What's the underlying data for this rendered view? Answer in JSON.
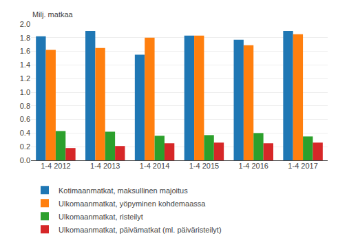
{
  "chart_data": {
    "type": "bar",
    "ylabel": "Milj. matkaa",
    "categories": [
      "1-4 2012",
      "1-4 2013",
      "1-4 2014",
      "1-4 2015",
      "1-4 2016",
      "1-4 2017"
    ],
    "series": [
      {
        "name": "Kotimaanmatkat, maksullinen majoitus",
        "values": [
          1.82,
          1.9,
          1.55,
          1.83,
          1.77,
          1.9
        ]
      },
      {
        "name": "Ulkomaanmatkat, yöpyminen kohdemaassa",
        "values": [
          1.62,
          1.65,
          1.8,
          1.83,
          1.69,
          1.85
        ]
      },
      {
        "name": "Ulkomaanmatkat, risteilyt",
        "values": [
          0.43,
          0.42,
          0.36,
          0.37,
          0.4,
          0.35
        ]
      },
      {
        "name": "Ulkomaanmatkat, päivämatkat (ml. päiväristeilyt)",
        "values": [
          0.18,
          0.21,
          0.25,
          0.26,
          0.25,
          0.26
        ]
      }
    ],
    "ylim": [
      0,
      2.0
    ],
    "yticks": [
      {
        "value": 0,
        "label": "0.0"
      },
      0.2,
      0.4,
      0.6,
      0.8,
      {
        "value": 1,
        "label": "1.0"
      },
      1.2,
      1.4,
      1.6,
      1.8,
      {
        "value": 2,
        "label": "2.0"
      }
    ],
    "grid": true,
    "legend": "bottom"
  }
}
